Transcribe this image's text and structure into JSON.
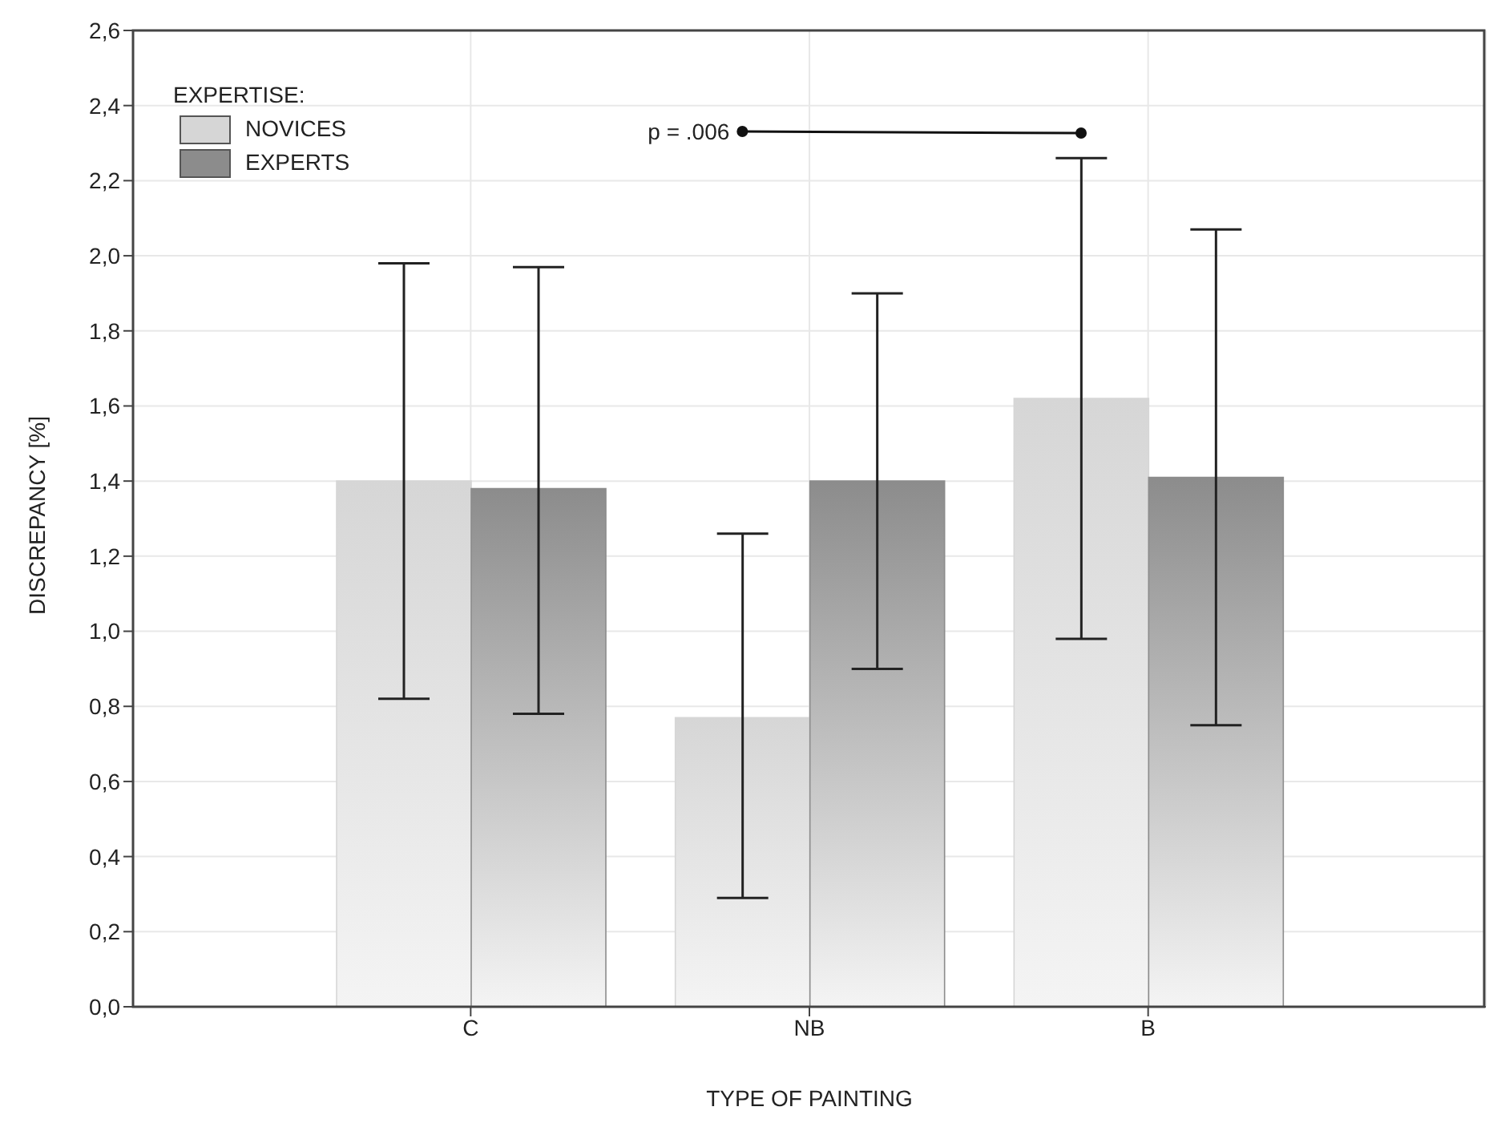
{
  "chart_data": {
    "type": "bar",
    "xlabel": "TYPE OF PAINTING",
    "ylabel": "DISCREPANCY [%]",
    "legend_title": "EXPERTISE:",
    "categories": [
      "C",
      "NB",
      "B"
    ],
    "series": [
      {
        "name": "NOVICES",
        "color": "#d6d6d6",
        "values": [
          1.4,
          0.77,
          1.62
        ],
        "errors": [
          [
            0.82,
            1.98
          ],
          [
            0.29,
            1.26
          ],
          [
            0.98,
            2.26
          ]
        ]
      },
      {
        "name": "EXPERTS",
        "color": "#8c8c8c",
        "values": [
          1.38,
          1.4,
          1.41
        ],
        "errors": [
          [
            0.78,
            1.97
          ],
          [
            0.9,
            1.9
          ],
          [
            0.75,
            2.07
          ]
        ]
      }
    ],
    "ylim": [
      0,
      2.6
    ],
    "yticks": [
      {
        "value": 0,
        "label": "0,0"
      },
      {
        "value": 0.2,
        "label": "0,2"
      },
      {
        "value": 0.4,
        "label": "0,4"
      },
      {
        "value": 0.6,
        "label": "0,6"
      },
      {
        "value": 0.8,
        "label": "0,8"
      },
      {
        "value": 1.0,
        "label": "1,0"
      },
      {
        "value": 1.2,
        "label": "1,2"
      },
      {
        "value": 1.4,
        "label": "1,4"
      },
      {
        "value": 1.6,
        "label": "1,6"
      },
      {
        "value": 1.8,
        "label": "1,8"
      },
      {
        "value": 2.0,
        "label": "2,0"
      },
      {
        "value": 2.2,
        "label": "2,2"
      },
      {
        "value": 2.4,
        "label": "2,4"
      },
      {
        "value": 2.6,
        "label": "2,6"
      }
    ],
    "grid": true,
    "legend": "top left",
    "annotations": [
      "p = .006"
    ]
  }
}
